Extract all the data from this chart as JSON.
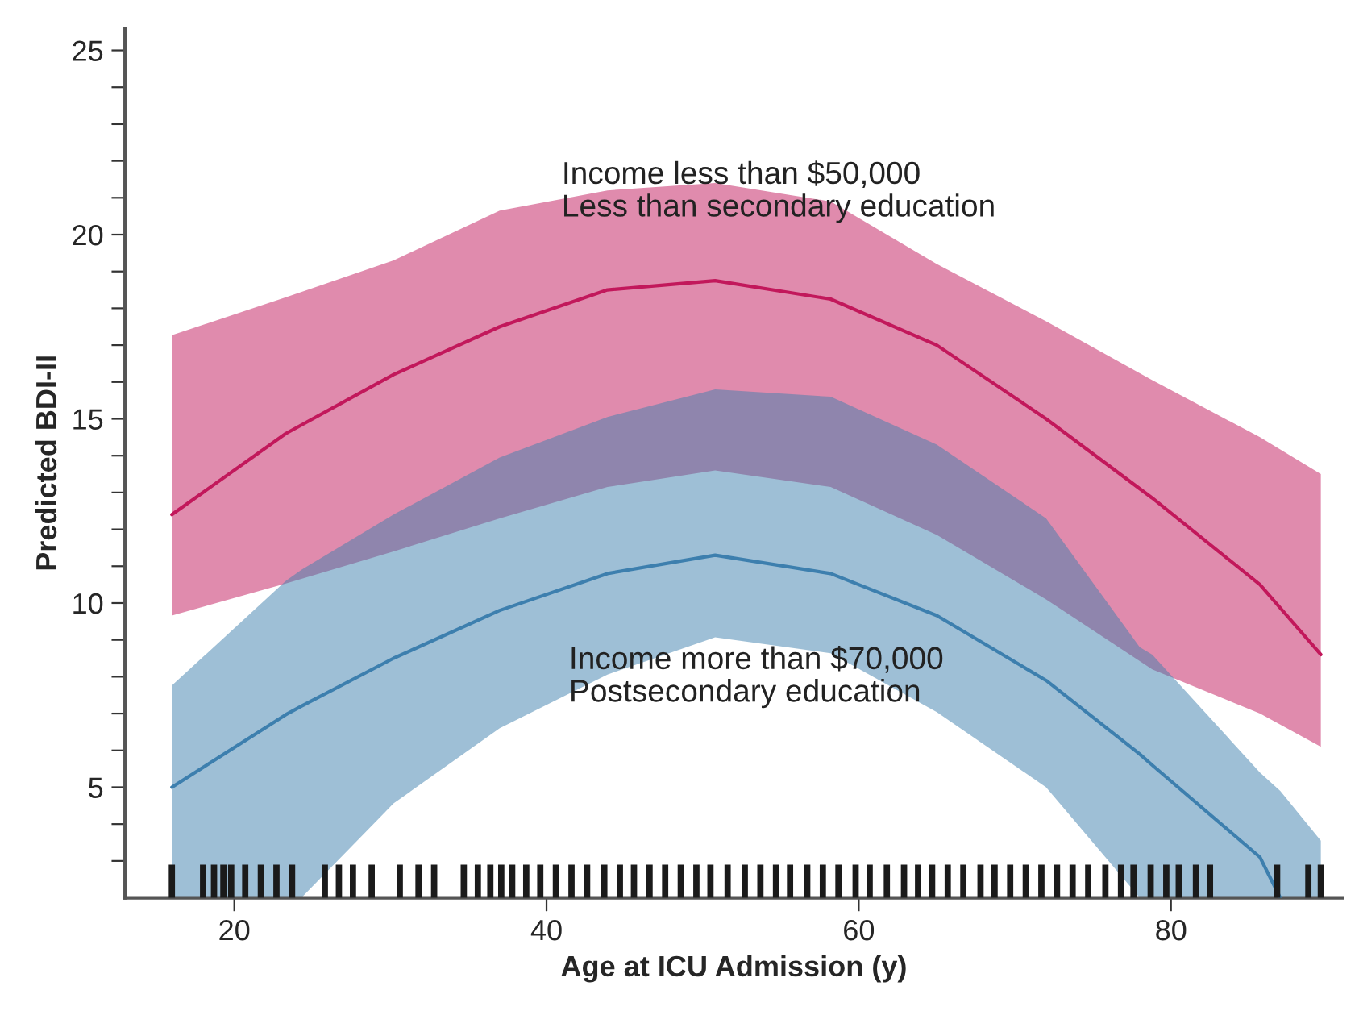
{
  "chart_data": {
    "type": "line",
    "xlabel": "Age at ICU Admission (y)",
    "ylabel": "Predicted BDI-II",
    "xlim": [
      13,
      91
    ],
    "ylim": [
      2,
      25.6
    ],
    "xticks": [
      20,
      40,
      60,
      80
    ],
    "yticks": [
      {
        "value": 3,
        "label": null
      },
      {
        "value": 4,
        "label": null
      },
      5,
      {
        "value": 6,
        "label": null
      },
      {
        "value": 7,
        "label": null
      },
      {
        "value": 8,
        "label": null
      },
      {
        "value": 9,
        "label": null
      },
      10,
      {
        "value": 11,
        "label": null
      },
      {
        "value": 12,
        "label": null
      },
      {
        "value": 13,
        "label": null
      },
      {
        "value": 14,
        "label": null
      },
      15,
      {
        "value": 16,
        "label": null
      },
      {
        "value": 17,
        "label": null
      },
      {
        "value": 18,
        "label": null
      },
      {
        "value": 19,
        "label": null
      },
      20,
      {
        "value": 21,
        "label": null
      },
      {
        "value": 22,
        "label": null
      },
      {
        "value": 23,
        "label": null
      },
      {
        "value": 24,
        "label": null
      },
      25
    ],
    "grid": false,
    "legend": false,
    "marker": "none",
    "line_style": "solid",
    "series": [
      {
        "type": "line",
        "name": "Income less than $50,000\nLess than secondary education",
        "color": "#c2185b",
        "x": [
          16,
          23.3,
          30.2,
          37,
          43.9,
          50.8,
          58.2,
          65,
          72,
          78.8,
          85.7,
          89.6
        ],
        "values": [
          12.4,
          14.6,
          16.2,
          17.5,
          18.5,
          18.75,
          18.25,
          17.0,
          15.0,
          12.85,
          10.5,
          8.6
        ],
        "lower": [
          9.66,
          10.53,
          11.4,
          12.3,
          13.15,
          13.6,
          13.15,
          11.85,
          10.1,
          8.2,
          7.0,
          6.1
        ],
        "upper": [
          17.27,
          18.3,
          19.3,
          20.65,
          21.2,
          21.4,
          20.9,
          19.2,
          17.65,
          16.05,
          14.5,
          13.5
        ]
      },
      {
        "type": "line",
        "name": "Income more than $70,000\nPostsecondary education",
        "color": "#3d7fae",
        "x": [
          16,
          23.3,
          24.3,
          30.2,
          37,
          43.9,
          50.8,
          58.2,
          65,
          72,
          78,
          78.8,
          85.7,
          87,
          89.6
        ],
        "values": [
          5.0,
          6.97,
          7.2,
          8.5,
          9.8,
          10.8,
          11.3,
          10.8,
          9.66,
          7.9,
          5.9,
          5.6,
          3.1,
          2.0,
          null
        ],
        "lower": [
          2.0,
          2.0,
          2.0,
          4.56,
          6.6,
          8.06,
          9.07,
          8.64,
          7.04,
          5.0,
          2.0,
          2.0,
          2.0,
          2.0,
          2.0
        ],
        "upper": [
          7.76,
          10.6,
          10.9,
          12.4,
          13.95,
          15.05,
          15.8,
          15.6,
          14.3,
          12.3,
          8.8,
          8.6,
          5.4,
          4.9,
          3.55
        ]
      },
      {
        "type": "bar",
        "color": "#1a1a1a",
        "x": [
          16.0,
          18.0,
          18.7,
          19.3,
          19.8,
          20.7,
          21.7,
          22.7,
          23.7,
          25.8,
          26.7,
          27.6,
          28.8,
          30.6,
          31.8,
          32.8,
          34.7,
          35.6,
          36.4,
          37.1,
          37.8,
          38.7,
          39.6,
          40.6,
          41.6,
          42.6,
          43.7,
          44.7,
          45.6,
          46.6,
          47.6,
          48.6,
          49.6,
          50.5,
          51.6,
          52.7,
          53.7,
          54.7,
          55.6,
          56.7,
          57.7,
          58.7,
          59.8,
          60.7,
          61.8,
          62.9,
          63.8,
          64.7,
          65.7,
          66.7,
          67.8,
          68.7,
          69.7,
          70.7,
          71.7,
          72.7,
          73.7,
          74.7,
          75.8,
          76.8,
          77.6,
          78.7,
          79.7,
          80.5,
          81.6,
          82.5,
          86.8,
          88.8,
          89.6
        ],
        "values": [
          2.9,
          2.9,
          2.9,
          2.9,
          2.9,
          2.9,
          2.9,
          2.9,
          2.9,
          2.9,
          2.9,
          2.9,
          2.9,
          2.9,
          2.9,
          2.9,
          2.9,
          2.9,
          2.9,
          2.9,
          2.9,
          2.9,
          2.9,
          2.9,
          2.9,
          2.9,
          2.9,
          2.9,
          2.9,
          2.9,
          2.9,
          2.9,
          2.9,
          2.9,
          2.9,
          2.9,
          2.9,
          2.9,
          2.9,
          2.9,
          2.9,
          2.9,
          2.9,
          2.9,
          2.9,
          2.9,
          2.9,
          2.9,
          2.9,
          2.9,
          2.9,
          2.9,
          2.9,
          2.9,
          2.9,
          2.9,
          2.9,
          2.9,
          2.9,
          2.9,
          2.9,
          2.9,
          2.9,
          2.9,
          2.9,
          2.9,
          2.9,
          2.9,
          2.9
        ]
      }
    ]
  }
}
